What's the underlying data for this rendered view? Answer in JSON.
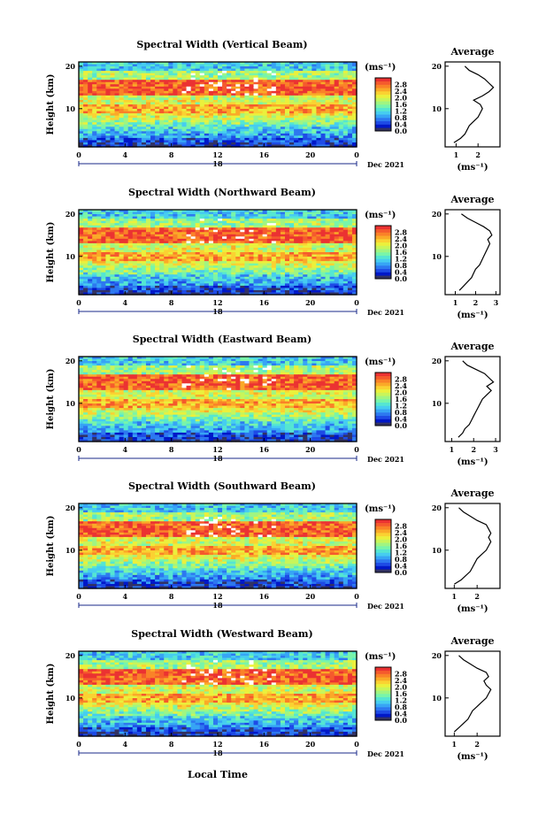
{
  "figure": {
    "xlabel": "Local Time",
    "date_label": "Dec 2021",
    "day_label": "18",
    "ylabel": "Height (km)",
    "avg_title": "Average",
    "unit_label": "(ms⁻¹)",
    "colors": [
      "#323264",
      "#0018c8",
      "#1e4be6",
      "#2d78f0",
      "#37a5f5",
      "#46cdf0",
      "#55e6d2",
      "#78f5aa",
      "#a0f582",
      "#c8f55a",
      "#ebf03c",
      "#fad232",
      "#faaa28",
      "#fa8228",
      "#f55a2d",
      "#eb3232"
    ]
  },
  "chart_data": [
    {
      "type": "heatmap",
      "title": "Spectral Width (Vertical Beam)",
      "x_ticks": [
        "0",
        "4",
        "8",
        "12",
        "16",
        "20",
        "0"
      ],
      "xlim": [
        0,
        24
      ],
      "y_ticks": [
        "20",
        "10"
      ],
      "ylim": [
        1,
        21
      ],
      "colorbar": {
        "ticks": [
          "2.8",
          "2.4",
          "2.0",
          "1.6",
          "1.2",
          "0.8",
          "0.4",
          "0.0"
        ],
        "range": [
          0,
          3.2
        ]
      },
      "profile": {
        "title": "Average",
        "x_ticks": [
          "1",
          "2"
        ],
        "xlim": [
          0.5,
          3.0
        ],
        "ylim": [
          1,
          21
        ],
        "y_ticks": [
          "20",
          "10"
        ],
        "xlabel": "(ms⁻¹)",
        "height_km": [
          2,
          3,
          4,
          5,
          6,
          7,
          8,
          9,
          10,
          11,
          12,
          13,
          14,
          15,
          16,
          17,
          18,
          19,
          20
        ],
        "values": [
          0.9,
          1.2,
          1.4,
          1.5,
          1.6,
          1.8,
          2.0,
          2.1,
          2.2,
          2.1,
          1.8,
          2.2,
          2.5,
          2.7,
          2.5,
          2.3,
          2.0,
          1.6,
          1.4
        ]
      }
    },
    {
      "type": "heatmap",
      "title": "Spectral Width (Northward Beam)",
      "x_ticks": [
        "0",
        "4",
        "8",
        "12",
        "16",
        "20",
        "0"
      ],
      "xlim": [
        0,
        24
      ],
      "y_ticks": [
        "20",
        "10"
      ],
      "ylim": [
        1,
        21
      ],
      "colorbar": {
        "ticks": [
          "2.8",
          "2.4",
          "2.0",
          "1.6",
          "1.2",
          "0.8",
          "0.4",
          "0.0"
        ],
        "range": [
          0,
          3.2
        ]
      },
      "profile": {
        "title": "Average",
        "x_ticks": [
          "1",
          "2",
          "3"
        ],
        "xlim": [
          0.5,
          3.2
        ],
        "ylim": [
          1,
          21
        ],
        "y_ticks": [
          "20",
          "10"
        ],
        "xlabel": "(ms⁻¹)",
        "height_km": [
          2,
          3,
          4,
          5,
          6,
          7,
          8,
          9,
          10,
          11,
          12,
          13,
          14,
          15,
          16,
          17,
          18,
          19,
          20
        ],
        "values": [
          1.2,
          1.4,
          1.6,
          1.8,
          1.9,
          2.0,
          2.2,
          2.3,
          2.4,
          2.5,
          2.6,
          2.7,
          2.6,
          2.8,
          2.7,
          2.4,
          2.0,
          1.6,
          1.3
        ]
      }
    },
    {
      "type": "heatmap",
      "title": "Spectral Width (Eastward Beam)",
      "x_ticks": [
        "0",
        "4",
        "8",
        "12",
        "16",
        "20",
        "0"
      ],
      "xlim": [
        0,
        24
      ],
      "y_ticks": [
        "20",
        "10"
      ],
      "ylim": [
        1,
        21
      ],
      "colorbar": {
        "ticks": [
          "2.8",
          "2.4",
          "2.0",
          "1.6",
          "1.2",
          "0.8",
          "0.4",
          "0.0"
        ],
        "range": [
          0,
          3.2
        ]
      },
      "profile": {
        "title": "Average",
        "x_ticks": [
          "1",
          "2",
          "3"
        ],
        "xlim": [
          0.7,
          3.2
        ],
        "ylim": [
          1,
          21
        ],
        "y_ticks": [
          "20",
          "10"
        ],
        "xlabel": "(ms⁻¹)",
        "height_km": [
          2,
          3,
          4,
          5,
          6,
          7,
          8,
          9,
          10,
          11,
          12,
          13,
          14,
          15,
          16,
          17,
          18,
          19,
          20
        ],
        "values": [
          1.3,
          1.5,
          1.6,
          1.8,
          1.9,
          2.0,
          2.1,
          2.2,
          2.3,
          2.4,
          2.6,
          2.8,
          2.6,
          2.9,
          2.7,
          2.5,
          2.1,
          1.7,
          1.5
        ]
      }
    },
    {
      "type": "heatmap",
      "title": "Spectral Width (Southward Beam)",
      "x_ticks": [
        "0",
        "4",
        "8",
        "12",
        "16",
        "20",
        "0"
      ],
      "xlim": [
        0,
        24
      ],
      "y_ticks": [
        "20",
        "10"
      ],
      "ylim": [
        1,
        21
      ],
      "colorbar": {
        "ticks": [
          "2.8",
          "2.4",
          "2.0",
          "1.6",
          "1.2",
          "0.8",
          "0.4",
          "0.0"
        ],
        "range": [
          0,
          3.2
        ]
      },
      "profile": {
        "title": "Average",
        "x_ticks": [
          "1",
          "2"
        ],
        "xlim": [
          0.6,
          3.0
        ],
        "ylim": [
          1,
          21
        ],
        "y_ticks": [
          "20",
          "10"
        ],
        "xlabel": "(ms⁻¹)",
        "height_km": [
          2,
          3,
          4,
          5,
          6,
          7,
          8,
          9,
          10,
          11,
          12,
          13,
          14,
          15,
          16,
          17,
          18,
          19,
          20
        ],
        "values": [
          1.0,
          1.3,
          1.5,
          1.7,
          1.8,
          1.9,
          2.0,
          2.2,
          2.4,
          2.5,
          2.6,
          2.5,
          2.6,
          2.5,
          2.4,
          2.0,
          1.7,
          1.4,
          1.2
        ]
      }
    },
    {
      "type": "heatmap",
      "title": "Spectral Width (Westward Beam)",
      "x_ticks": [
        "0",
        "4",
        "8",
        "12",
        "16",
        "20",
        "0"
      ],
      "xlim": [
        0,
        24
      ],
      "y_ticks": [
        "20",
        "10"
      ],
      "ylim": [
        1,
        21
      ],
      "colorbar": {
        "ticks": [
          "2.8",
          "2.4",
          "2.0",
          "1.6",
          "1.2",
          "0.8",
          "0.4",
          "0.0"
        ],
        "range": [
          0,
          3.2
        ]
      },
      "profile": {
        "title": "Average",
        "x_ticks": [
          "1",
          "2"
        ],
        "xlim": [
          0.6,
          3.0
        ],
        "ylim": [
          1,
          21
        ],
        "y_ticks": [
          "20",
          "10"
        ],
        "xlabel": "(ms⁻¹)",
        "height_km": [
          2,
          3,
          4,
          5,
          6,
          7,
          8,
          9,
          10,
          11,
          12,
          13,
          14,
          15,
          16,
          17,
          18,
          19,
          20
        ],
        "values": [
          1.0,
          1.2,
          1.4,
          1.6,
          1.7,
          1.8,
          2.0,
          2.2,
          2.4,
          2.5,
          2.6,
          2.4,
          2.3,
          2.5,
          2.4,
          2.0,
          1.7,
          1.4,
          1.2
        ]
      }
    }
  ]
}
